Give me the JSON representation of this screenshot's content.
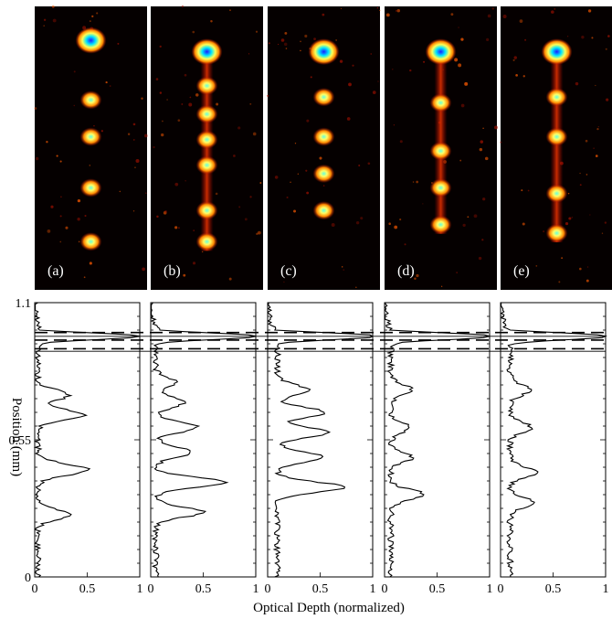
{
  "figure": {
    "image_panels": [
      {
        "label": "(a)",
        "blobs": [
          0.12,
          0.33,
          0.46,
          0.64,
          0.83
        ],
        "bright_blob": 0.12,
        "streak": false
      },
      {
        "label": "(b)",
        "blobs": [
          0.16,
          0.28,
          0.38,
          0.47,
          0.56,
          0.72,
          0.83
        ],
        "bright_blob": 0.16,
        "streak": true
      },
      {
        "label": "(c)",
        "blobs": [
          0.16,
          0.32,
          0.46,
          0.59,
          0.72
        ],
        "bright_blob": 0.16,
        "streak": false
      },
      {
        "label": "(d)",
        "blobs": [
          0.16,
          0.34,
          0.51,
          0.64,
          0.77
        ],
        "bright_blob": 0.16,
        "streak": true
      },
      {
        "label": "(e)",
        "blobs": [
          0.16,
          0.32,
          0.46,
          0.66,
          0.8
        ],
        "bright_blob": 0.16,
        "streak": true
      }
    ],
    "colors": {
      "image_bg": "#050000",
      "axis": "#000000",
      "dashed": "#000000"
    }
  },
  "chart_data": {
    "type": "line",
    "orientation": "profile-vs-position",
    "xlabel": "Optical Depth (normalized)",
    "ylabel": "Position (mm)",
    "xlim": [
      0,
      1
    ],
    "ylim": [
      0,
      1.1
    ],
    "x_ticks": [
      "0",
      "0.5",
      "1"
    ],
    "y_ticks": [
      {
        "value": 0,
        "label": "0"
      },
      {
        "value": 0.55,
        "label": "0.55"
      },
      {
        "value": 1.1,
        "label": "1.1"
      }
    ],
    "dashed_lines": [
      0.98,
      0.95,
      0.915
    ],
    "solid_lines": [
      0.965,
      0.905
    ],
    "panels": [
      {
        "label": "(a)",
        "peaks": [
          {
            "y": 0.965,
            "x": 1.0,
            "w": 0.012
          },
          {
            "y": 0.73,
            "x": 0.3,
            "w": 0.02
          },
          {
            "y": 0.65,
            "x": 0.45,
            "w": 0.02
          },
          {
            "y": 0.43,
            "x": 0.48,
            "w": 0.022
          },
          {
            "y": 0.25,
            "x": 0.3,
            "w": 0.02
          }
        ],
        "base": 0.05
      },
      {
        "label": "(b)",
        "peaks": [
          {
            "y": 0.965,
            "x": 1.0,
            "w": 0.012
          },
          {
            "y": 0.78,
            "x": 0.2,
            "w": 0.02
          },
          {
            "y": 0.7,
            "x": 0.27,
            "w": 0.02
          },
          {
            "y": 0.6,
            "x": 0.4,
            "w": 0.02
          },
          {
            "y": 0.5,
            "x": 0.35,
            "w": 0.02
          },
          {
            "y": 0.38,
            "x": 0.65,
            "w": 0.02
          },
          {
            "y": 0.26,
            "x": 0.45,
            "w": 0.02
          }
        ],
        "base": 0.08
      },
      {
        "label": "(c)",
        "peaks": [
          {
            "y": 0.965,
            "x": 1.0,
            "w": 0.012
          },
          {
            "y": 0.75,
            "x": 0.3,
            "w": 0.02
          },
          {
            "y": 0.66,
            "x": 0.45,
            "w": 0.02
          },
          {
            "y": 0.58,
            "x": 0.48,
            "w": 0.02
          },
          {
            "y": 0.48,
            "x": 0.45,
            "w": 0.02
          },
          {
            "y": 0.36,
            "x": 0.65,
            "w": 0.02
          }
        ],
        "base": 0.15
      },
      {
        "label": "(d)",
        "peaks": [
          {
            "y": 0.965,
            "x": 1.0,
            "w": 0.012
          },
          {
            "y": 0.75,
            "x": 0.2,
            "w": 0.02
          },
          {
            "y": 0.6,
            "x": 0.18,
            "w": 0.02
          },
          {
            "y": 0.48,
            "x": 0.2,
            "w": 0.02
          },
          {
            "y": 0.33,
            "x": 0.32,
            "w": 0.02
          }
        ],
        "base": 0.1
      },
      {
        "label": "(e)",
        "peaks": [
          {
            "y": 0.965,
            "x": 1.0,
            "w": 0.012
          },
          {
            "y": 0.75,
            "x": 0.2,
            "w": 0.02
          },
          {
            "y": 0.6,
            "x": 0.2,
            "w": 0.02
          },
          {
            "y": 0.42,
            "x": 0.25,
            "w": 0.02
          },
          {
            "y": 0.3,
            "x": 0.22,
            "w": 0.02
          }
        ],
        "base": 0.15
      }
    ]
  }
}
